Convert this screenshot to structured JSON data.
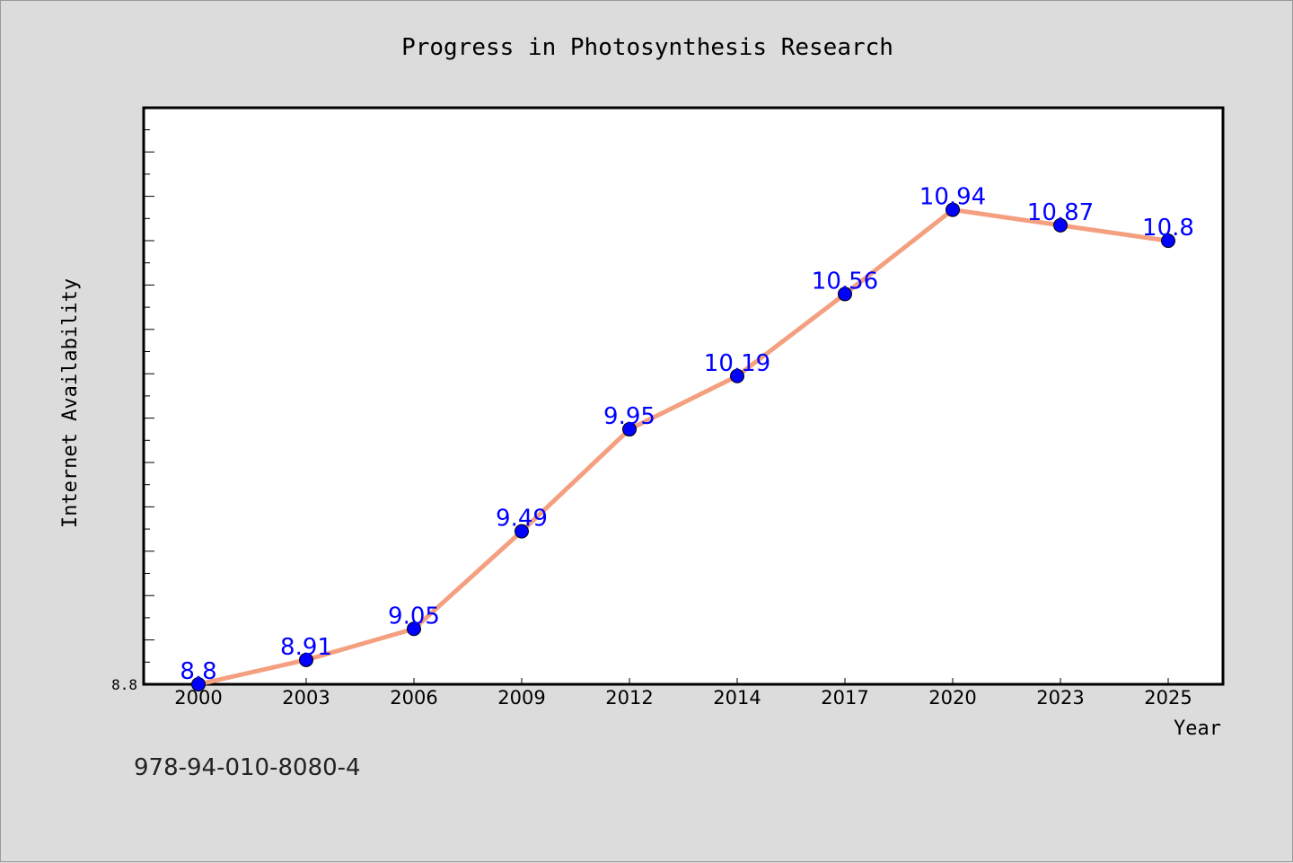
{
  "chart_data": {
    "type": "line",
    "title": "Progress in Photosynthesis Research",
    "xlabel": "Year",
    "ylabel": "Internet Availability",
    "categories": [
      "2000",
      "2003",
      "2006",
      "2009",
      "2012",
      "2014",
      "2017",
      "2020",
      "2023",
      "2025"
    ],
    "series": [
      {
        "values": [
          8.8,
          8.91,
          9.05,
          9.49,
          9.95,
          10.19,
          10.56,
          10.94,
          10.87,
          10.8
        ],
        "labels": [
          "8.8",
          "8.91",
          "9.05",
          "9.49",
          "9.95",
          "10.19",
          "10.56",
          "10.94",
          "10.87",
          "10.8"
        ],
        "line_color": "#f4a080",
        "marker_color": "#0000ff"
      }
    ],
    "ylim": [
      8.8,
      11.4
    ],
    "ytick_labels": [
      "8.8"
    ],
    "grid": false,
    "legend": "none",
    "background": "#dcdcdc",
    "plot_background": "#ffffff"
  },
  "footer": {
    "isbn": "978-94-010-8080-4"
  }
}
